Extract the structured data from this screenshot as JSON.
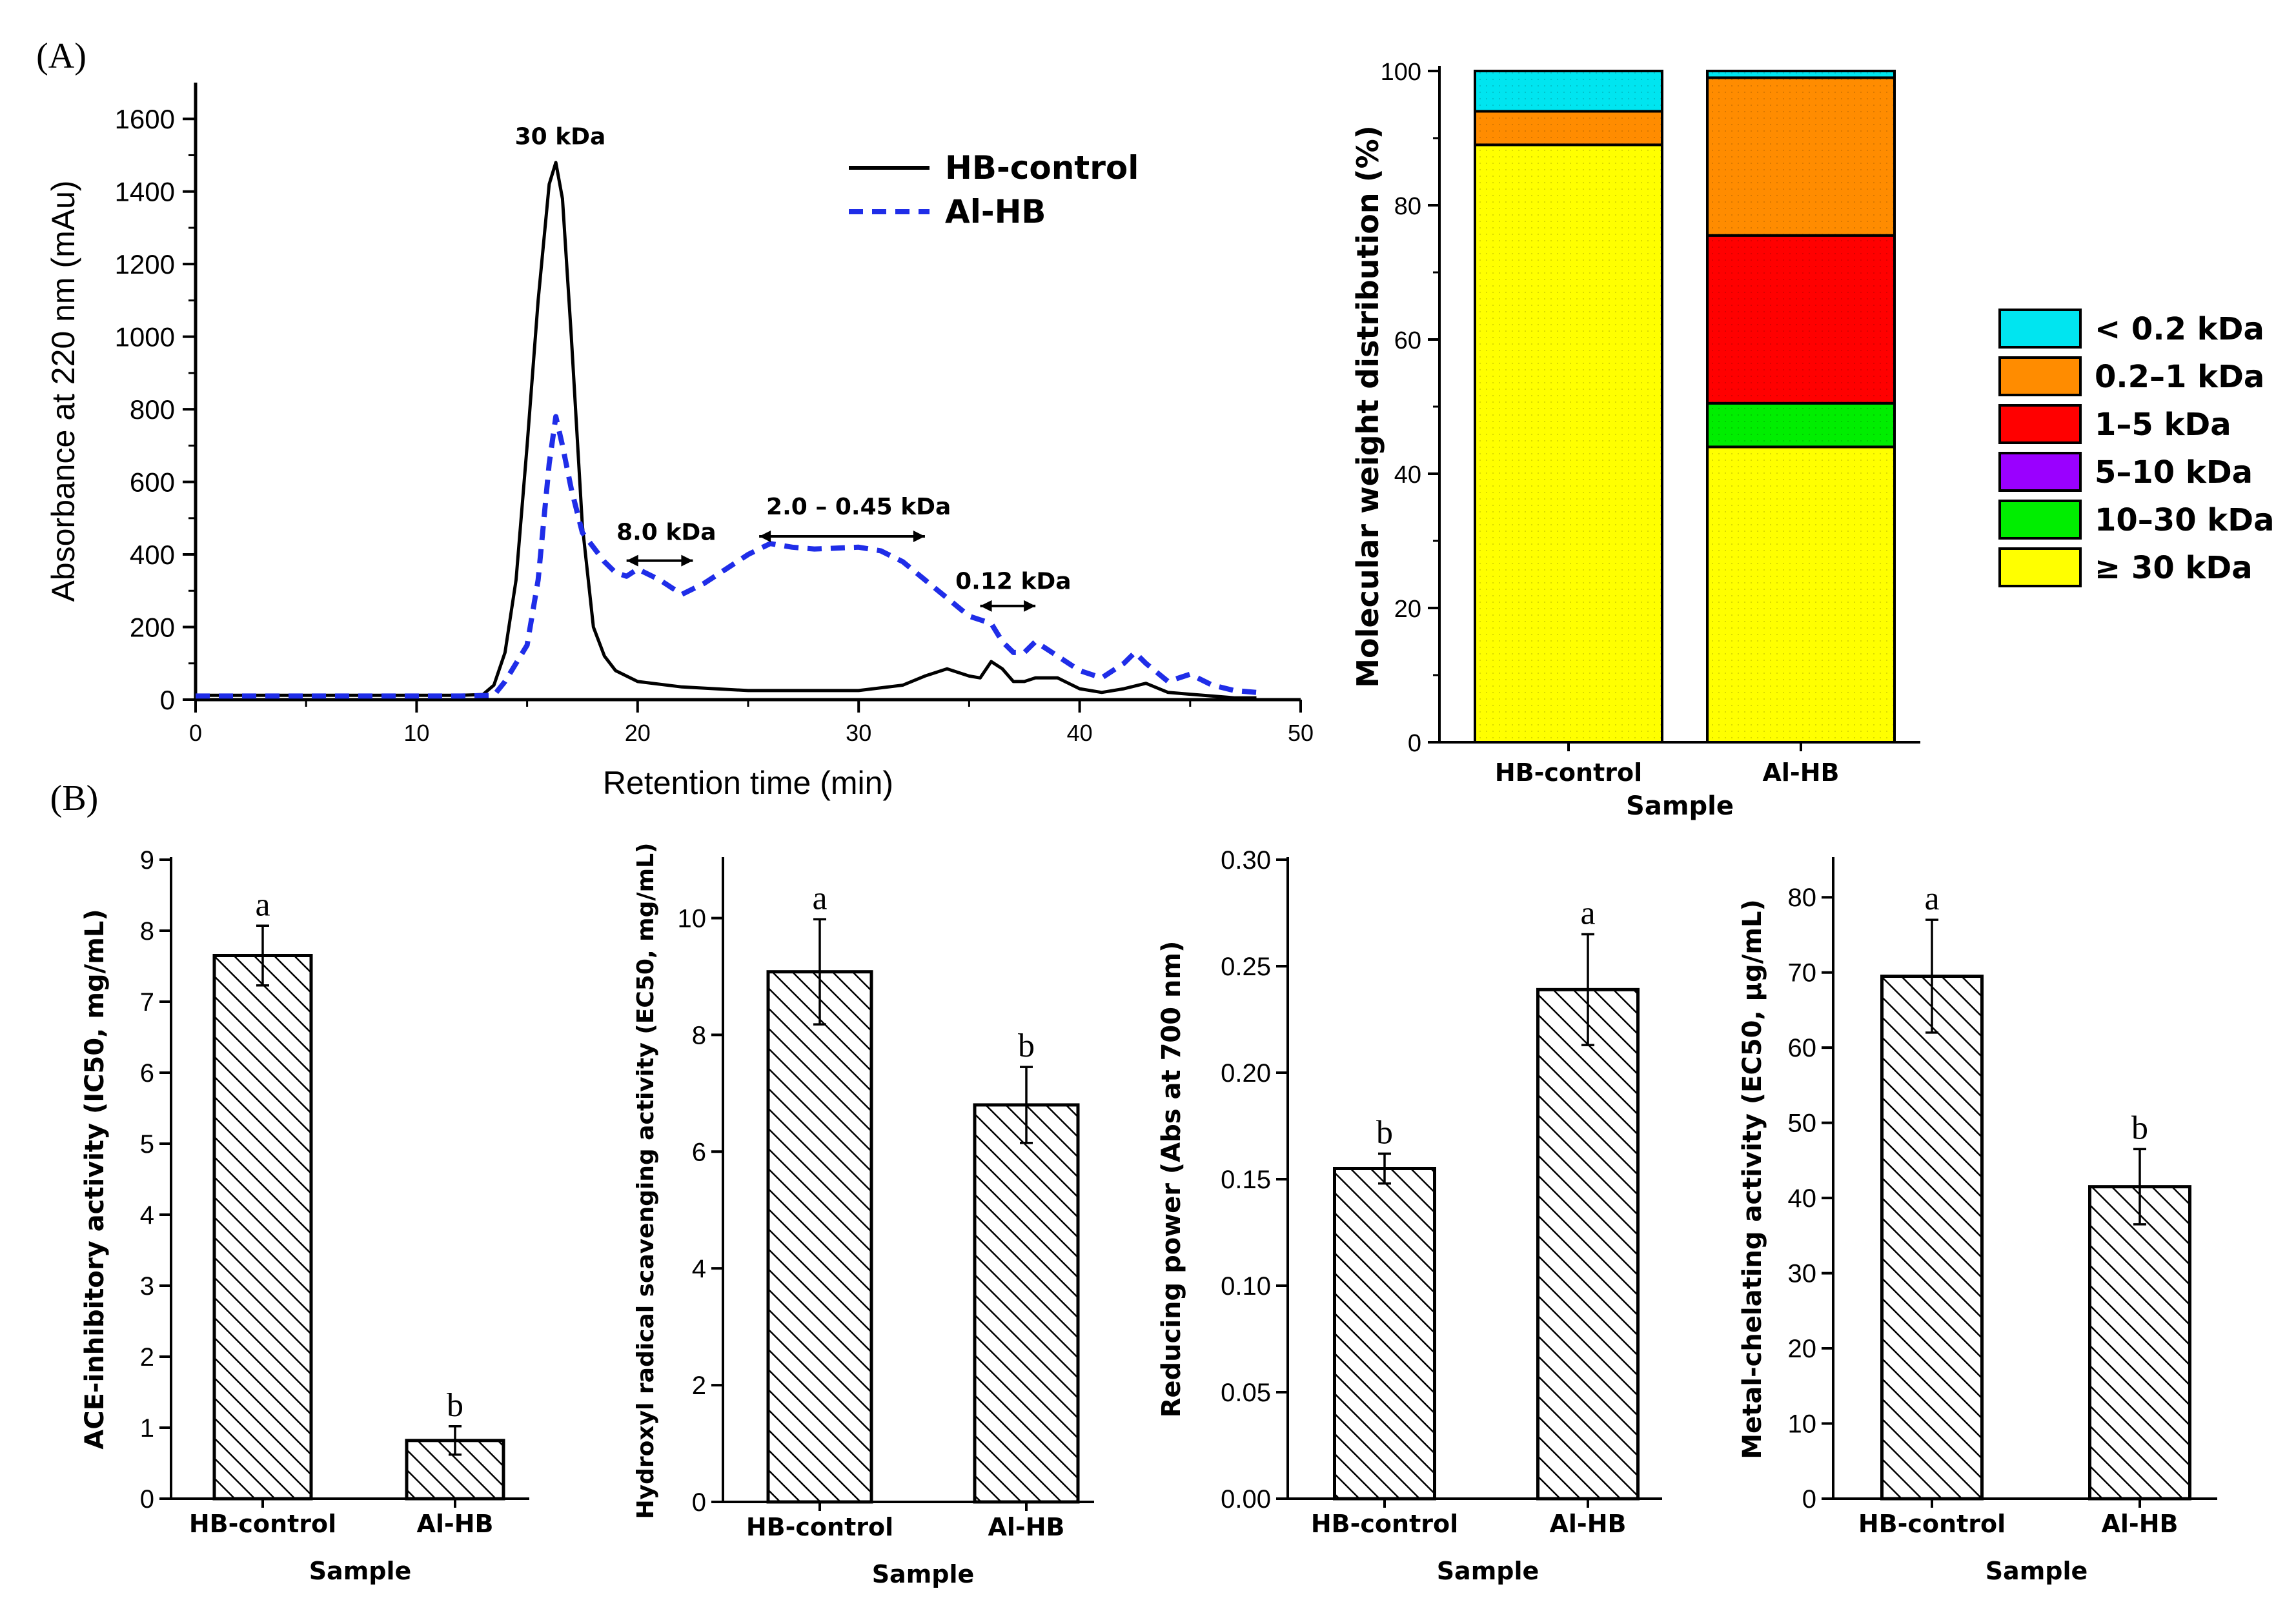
{
  "chart_data": [
    {
      "id": "A1",
      "type": "line",
      "panel_label": "(A)",
      "xlabel": "Retention time (min)",
      "ylabel": "Absorbance at 220 nm (mAu)",
      "xlim": [
        0,
        50
      ],
      "ylim": [
        0,
        1700
      ],
      "xticks": [
        0,
        10,
        20,
        30,
        40,
        50
      ],
      "yticks": [
        0,
        200,
        400,
        600,
        800,
        1000,
        1200,
        1400,
        1600
      ],
      "legend": "top-right",
      "series": [
        {
          "name": "HB-control",
          "style": "solid",
          "color": "#000000",
          "x": [
            0,
            5,
            10,
            12,
            13,
            13.5,
            14,
            14.5,
            15,
            15.5,
            16,
            16.3,
            16.6,
            17,
            17.5,
            18,
            18.5,
            19,
            20,
            22,
            25,
            30,
            32,
            33,
            34,
            35,
            35.5,
            36,
            36.5,
            37,
            37.5,
            38,
            39,
            40,
            41,
            42,
            43,
            44,
            45,
            46,
            47,
            48
          ],
          "y": [
            12,
            12,
            12,
            12,
            14,
            40,
            130,
            330,
            700,
            1100,
            1420,
            1480,
            1380,
            1000,
            480,
            200,
            120,
            80,
            50,
            35,
            25,
            25,
            40,
            65,
            85,
            65,
            60,
            105,
            85,
            50,
            50,
            60,
            60,
            30,
            20,
            30,
            45,
            20,
            15,
            10,
            5,
            5
          ]
        },
        {
          "name": "Al-HB",
          "style": "dashed",
          "color": "#1f2de8",
          "x": [
            0,
            5,
            10,
            12,
            13.5,
            14,
            15,
            15.5,
            16,
            16.3,
            16.6,
            17,
            17.5,
            18,
            18.5,
            19,
            19.5,
            20,
            21,
            22,
            23,
            24,
            25,
            26,
            27,
            28,
            30,
            31,
            32,
            33,
            34,
            35,
            36,
            36.5,
            37,
            37.5,
            38,
            39,
            40,
            41,
            42,
            42.5,
            43,
            44,
            45,
            46,
            47,
            48
          ],
          "y": [
            10,
            10,
            10,
            10,
            12,
            50,
            150,
            330,
            650,
            780,
            700,
            580,
            460,
            420,
            380,
            350,
            340,
            360,
            330,
            290,
            320,
            360,
            400,
            430,
            420,
            415,
            420,
            410,
            380,
            330,
            280,
            230,
            210,
            160,
            130,
            130,
            160,
            120,
            80,
            60,
            100,
            130,
            100,
            50,
            70,
            40,
            25,
            20
          ]
        }
      ],
      "annotations": [
        {
          "text": "30 kDa",
          "x": 16.5,
          "y": 1530
        },
        {
          "text": "8.0 kDa",
          "x": 21.3,
          "y": 440,
          "arrow_from": 19.5,
          "arrow_to": 22.5,
          "arrow_y": 383
        },
        {
          "text": "2.0 – 0.45 kDa",
          "x": 30,
          "y": 510,
          "arrow_from": 25.5,
          "arrow_to": 33,
          "arrow_y": 450
        },
        {
          "text": "0.12 kDa",
          "x": 37,
          "y": 305,
          "arrow_from": 35.5,
          "arrow_to": 38,
          "arrow_y": 258
        }
      ]
    },
    {
      "id": "A2",
      "type": "bar",
      "stacked": true,
      "xlabel": "Sample",
      "ylabel": "Molecular weight distribution (%)",
      "categories": [
        "HB-control",
        "Al-HB"
      ],
      "ylim": [
        0,
        100
      ],
      "yticks": [
        0,
        20,
        40,
        60,
        80,
        100
      ],
      "legend": "right",
      "series": [
        {
          "name": "≥ 30 kDa",
          "color": "#ffff00",
          "values": [
            89,
            44
          ]
        },
        {
          "name": "10–30 kDa",
          "color": "#00ee00",
          "values": [
            0,
            6.5
          ]
        },
        {
          "name": "5–10 kDa",
          "color": "#9a00ff",
          "values": [
            0,
            0
          ]
        },
        {
          "name": "1–5 kDa",
          "color": "#ff0000",
          "values": [
            0,
            25
          ]
        },
        {
          "name": "0.2–1 kDa",
          "color": "#ff8c00",
          "values": [
            5,
            23.5
          ]
        },
        {
          "name": "< 0.2 kDa",
          "color": "#00e5f0",
          "values": [
            6,
            1
          ]
        }
      ],
      "legend_order": [
        "< 0.2 kDa",
        "0.2–1 kDa",
        "1–5 kDa",
        "5–10 kDa",
        "10–30 kDa",
        "≥ 30 kDa"
      ]
    },
    {
      "id": "B1",
      "type": "bar",
      "panel_label": "(B)",
      "xlabel": "Sample",
      "ylabel": "ACE-inhibitory activity (IC50, mg/mL)",
      "categories": [
        "HB-control",
        "Al-HB"
      ],
      "values": [
        7.65,
        0.82
      ],
      "errors": [
        0.42,
        0.2
      ],
      "letters": [
        "a",
        "b"
      ],
      "ylim": [
        0,
        9
      ],
      "yticks": [
        "0",
        "1",
        "2",
        "3",
        "4",
        "5",
        "6",
        "7",
        "8",
        "9"
      ]
    },
    {
      "id": "B2",
      "type": "bar",
      "xlabel": "Sample",
      "ylabel": "Hydroxyl radical scavenging activity (EC50, mg/mL)",
      "categories": [
        "HB-control",
        "Al-HB"
      ],
      "values": [
        9.08,
        6.8
      ],
      "errors": [
        0.9,
        0.65
      ],
      "letters": [
        "a",
        "b"
      ],
      "ylim": [
        0,
        11
      ],
      "yticks": [
        "0",
        "2",
        "4",
        "6",
        "8",
        "10"
      ]
    },
    {
      "id": "B3",
      "type": "bar",
      "xlabel": "Sample",
      "ylabel": "Reducing power (Abs at 700 nm)",
      "categories": [
        "HB-control",
        "Al-HB"
      ],
      "values": [
        0.155,
        0.239
      ],
      "errors": [
        0.007,
        0.026
      ],
      "letters": [
        "b",
        "a"
      ],
      "ylim": [
        0,
        0.3
      ],
      "yticks": [
        "0.00",
        "0.05",
        "0.10",
        "0.15",
        "0.20",
        "0.25",
        "0.30"
      ]
    },
    {
      "id": "B4",
      "type": "bar",
      "xlabel": "Sample",
      "ylabel": "Metal-chelating activity (EC50, µg/mL)",
      "categories": [
        "HB-control",
        "Al-HB"
      ],
      "values": [
        69.5,
        41.5
      ],
      "errors": [
        7.5,
        5
      ],
      "letters": [
        "a",
        "b"
      ],
      "ylim": [
        0,
        85
      ],
      "yticks": [
        "0",
        "10",
        "20",
        "30",
        "40",
        "50",
        "60",
        "70",
        "80"
      ]
    }
  ]
}
